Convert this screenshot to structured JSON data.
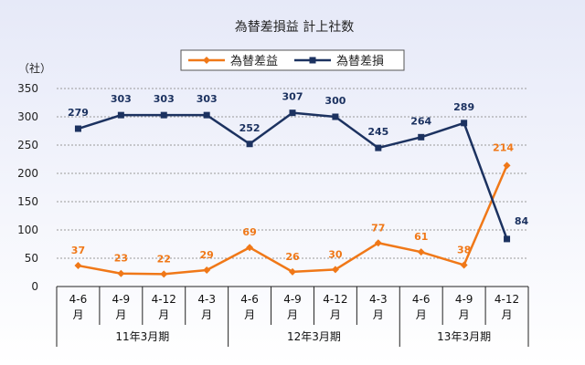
{
  "chart_data": {
    "type": "line",
    "title": "為替差損益 計上社数",
    "ylabel": "（社）",
    "ylim": [
      0,
      350
    ],
    "yticks": [
      0,
      50,
      100,
      150,
      200,
      250,
      300,
      350
    ],
    "grid": true,
    "legend_position": "top",
    "categories": [
      [
        "4-6",
        "月"
      ],
      [
        "4-9",
        "月"
      ],
      [
        "4-12",
        "月"
      ],
      [
        "4-3",
        "月"
      ],
      [
        "4-6",
        "月"
      ],
      [
        "4-9",
        "月"
      ],
      [
        "4-12",
        "月"
      ],
      [
        "4-3",
        "月"
      ],
      [
        "4-6",
        "月"
      ],
      [
        "4-9",
        "月"
      ],
      [
        "4-12",
        "月"
      ]
    ],
    "periods": [
      {
        "label": "11年3月期",
        "span": 4
      },
      {
        "label": "12年3月期",
        "span": 4
      },
      {
        "label": "13年3月期",
        "span": 3
      }
    ],
    "series": [
      {
        "name": "為替差益",
        "color": "#f07818",
        "marker": "diamond",
        "values": [
          37,
          23,
          22,
          29,
          69,
          26,
          30,
          77,
          61,
          38,
          214
        ]
      },
      {
        "name": "為替差損",
        "color": "#1c3260",
        "marker": "square",
        "values": [
          279,
          303,
          303,
          303,
          252,
          307,
          300,
          245,
          264,
          289,
          84
        ]
      }
    ]
  }
}
